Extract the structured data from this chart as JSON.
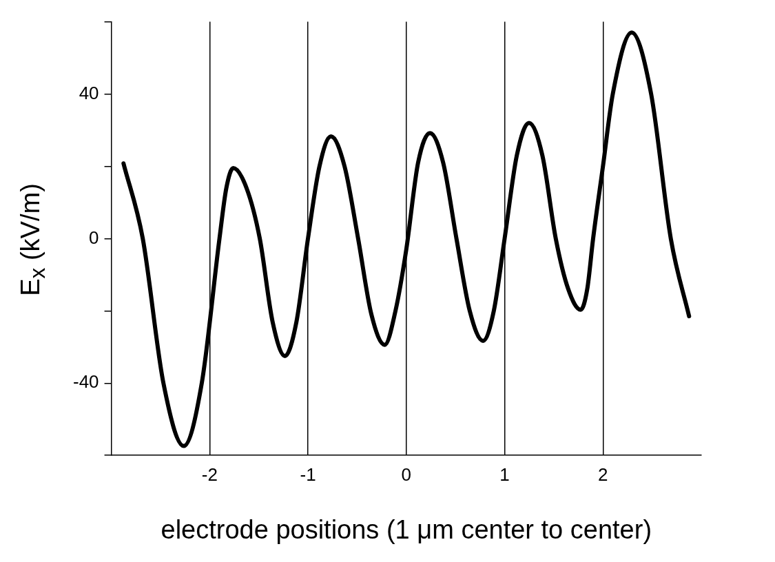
{
  "chart_data": {
    "type": "line",
    "xlabel": "electrode positions (1 μm center to center)",
    "ylabel": "E$_{x}$ (kV/m)",
    "xlim": [
      -3,
      3
    ],
    "xticks": [
      -2,
      -1,
      0,
      1,
      2
    ],
    "ylim": [
      -60,
      60
    ],
    "yticks": [
      {
        "value": -60,
        "label": null
      },
      -40,
      {
        "value": -20,
        "label": null
      },
      0,
      {
        "value": 20,
        "label": null
      },
      40,
      {
        "value": 60,
        "label": null
      }
    ],
    "grid": "x",
    "legend": false,
    "marker": "none",
    "line_style": "solid",
    "series": [
      {
        "color": "#000000",
        "x": [
          -2.876,
          -2.68,
          -2.47,
          -2.263,
          -2.08,
          -1.9,
          -1.83,
          -1.76,
          -1.625,
          -1.49,
          -1.36,
          -1.234,
          -1.117,
          -1.0,
          -0.883,
          -0.766,
          -0.628,
          -0.49,
          -0.355,
          -0.219,
          -0.11,
          0.0,
          0.12,
          0.241,
          0.375,
          0.51,
          0.645,
          0.781,
          0.89,
          1.0,
          1.124,
          1.248,
          1.384,
          1.52,
          1.647,
          1.774,
          1.84,
          1.9,
          2.0,
          2.1,
          2.292,
          2.49,
          2.69,
          2.876
        ],
        "values": [
          20.8,
          0,
          -40,
          -57.4,
          -40,
          0,
          14,
          19.5,
          14,
          0,
          -23,
          -32.5,
          -23,
          0,
          20,
          28.3,
          20,
          0,
          -21,
          -29.4,
          -20,
          -3,
          21,
          29.2,
          21,
          0,
          -20,
          -28.3,
          -20,
          0,
          23,
          32,
          23,
          0,
          -14,
          -19.7,
          -14,
          0,
          20,
          40,
          57,
          40,
          0,
          -21.5
        ]
      }
    ]
  }
}
